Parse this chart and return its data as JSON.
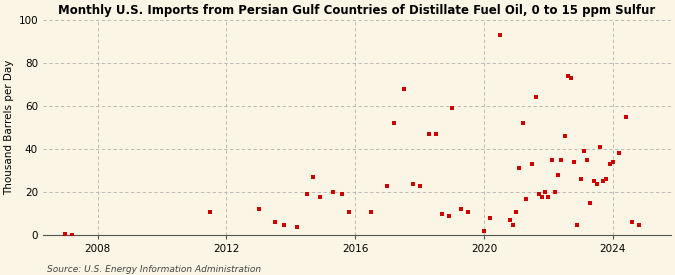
{
  "title": "Monthly U.S. Imports from Persian Gulf Countries of Distillate Fuel Oil, 0 to 15 ppm Sulfur",
  "ylabel": "Thousand Barrels per Day",
  "source": "Source: U.S. Energy Information Administration",
  "background_color": "#FAF5E4",
  "dot_color": "#CC0000",
  "ylim": [
    0,
    100
  ],
  "yticks": [
    0,
    20,
    40,
    60,
    80,
    100
  ],
  "xlim_start": 2006.3,
  "xlim_end": 2025.8,
  "xticks": [
    2008,
    2012,
    2016,
    2020,
    2024
  ],
  "vgrid_years": [
    2008,
    2012,
    2016,
    2020,
    2024
  ],
  "data_points": [
    [
      2007.0,
      0.5
    ],
    [
      2007.2,
      0.3
    ],
    [
      2011.5,
      11
    ],
    [
      2013.0,
      12
    ],
    [
      2013.5,
      6
    ],
    [
      2013.8,
      5
    ],
    [
      2014.2,
      4
    ],
    [
      2014.5,
      19
    ],
    [
      2014.7,
      27
    ],
    [
      2014.9,
      18
    ],
    [
      2015.3,
      20
    ],
    [
      2015.6,
      19
    ],
    [
      2015.8,
      11
    ],
    [
      2016.5,
      11
    ],
    [
      2017.0,
      23
    ],
    [
      2017.2,
      52
    ],
    [
      2017.5,
      68
    ],
    [
      2017.8,
      24
    ],
    [
      2018.0,
      23
    ],
    [
      2018.3,
      47
    ],
    [
      2018.5,
      47
    ],
    [
      2018.7,
      10
    ],
    [
      2018.9,
      9
    ],
    [
      2019.0,
      59
    ],
    [
      2019.3,
      12
    ],
    [
      2019.5,
      11
    ],
    [
      2020.0,
      2
    ],
    [
      2020.2,
      8
    ],
    [
      2020.5,
      93
    ],
    [
      2020.8,
      7
    ],
    [
      2020.9,
      5
    ],
    [
      2021.0,
      11
    ],
    [
      2021.1,
      31
    ],
    [
      2021.2,
      52
    ],
    [
      2021.3,
      17
    ],
    [
      2021.5,
      33
    ],
    [
      2021.6,
      64
    ],
    [
      2021.7,
      19
    ],
    [
      2021.8,
      18
    ],
    [
      2021.9,
      20
    ],
    [
      2022.0,
      18
    ],
    [
      2022.1,
      35
    ],
    [
      2022.2,
      20
    ],
    [
      2022.3,
      28
    ],
    [
      2022.4,
      35
    ],
    [
      2022.5,
      46
    ],
    [
      2022.6,
      74
    ],
    [
      2022.7,
      73
    ],
    [
      2022.8,
      34
    ],
    [
      2022.9,
      5
    ],
    [
      2023.0,
      26
    ],
    [
      2023.1,
      39
    ],
    [
      2023.2,
      35
    ],
    [
      2023.3,
      15
    ],
    [
      2023.4,
      25
    ],
    [
      2023.5,
      24
    ],
    [
      2023.6,
      41
    ],
    [
      2023.7,
      25
    ],
    [
      2023.8,
      26
    ],
    [
      2023.9,
      33
    ],
    [
      2024.0,
      34
    ],
    [
      2024.2,
      38
    ],
    [
      2024.4,
      55
    ],
    [
      2024.6,
      6
    ],
    [
      2024.8,
      5
    ]
  ]
}
